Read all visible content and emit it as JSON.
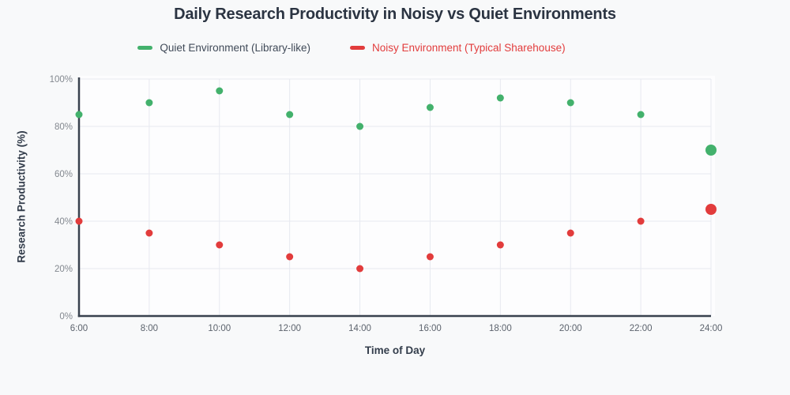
{
  "page": {
    "background": "#f8f9fa"
  },
  "chart_data": {
    "type": "scatter",
    "title": "Daily Research Productivity in Noisy vs Quiet Environments",
    "xlabel": "Time of Day",
    "ylabel": "Research Productivity (%)",
    "x": [
      "6:00",
      "8:00",
      "10:00",
      "12:00",
      "14:00",
      "16:00",
      "18:00",
      "20:00",
      "22:00",
      "24:00"
    ],
    "series": [
      {
        "name": "Quiet Environment (Library-like)",
        "color": "#43b16c",
        "values": [
          85,
          90,
          95,
          85,
          80,
          88,
          92,
          90,
          85,
          70
        ]
      },
      {
        "name": "Noisy Environment (Typical Sharehouse)",
        "color": "#e23c3c",
        "values": [
          40,
          35,
          30,
          25,
          20,
          25,
          30,
          35,
          40,
          45
        ]
      }
    ],
    "ylim": [
      0,
      100
    ],
    "yticks": [
      0,
      20,
      40,
      60,
      80,
      100
    ],
    "ytick_suffix": "%",
    "grid": true,
    "legend_position": "top-center",
    "marker_radius": 4.5,
    "last_marker_radius": 7,
    "plot_background": "#fdfdfe",
    "grid_color": "#e7e9f0",
    "axis_color": "#39424e",
    "x_tick_color": "#5c636d",
    "y_tick_color": "#83888f"
  }
}
